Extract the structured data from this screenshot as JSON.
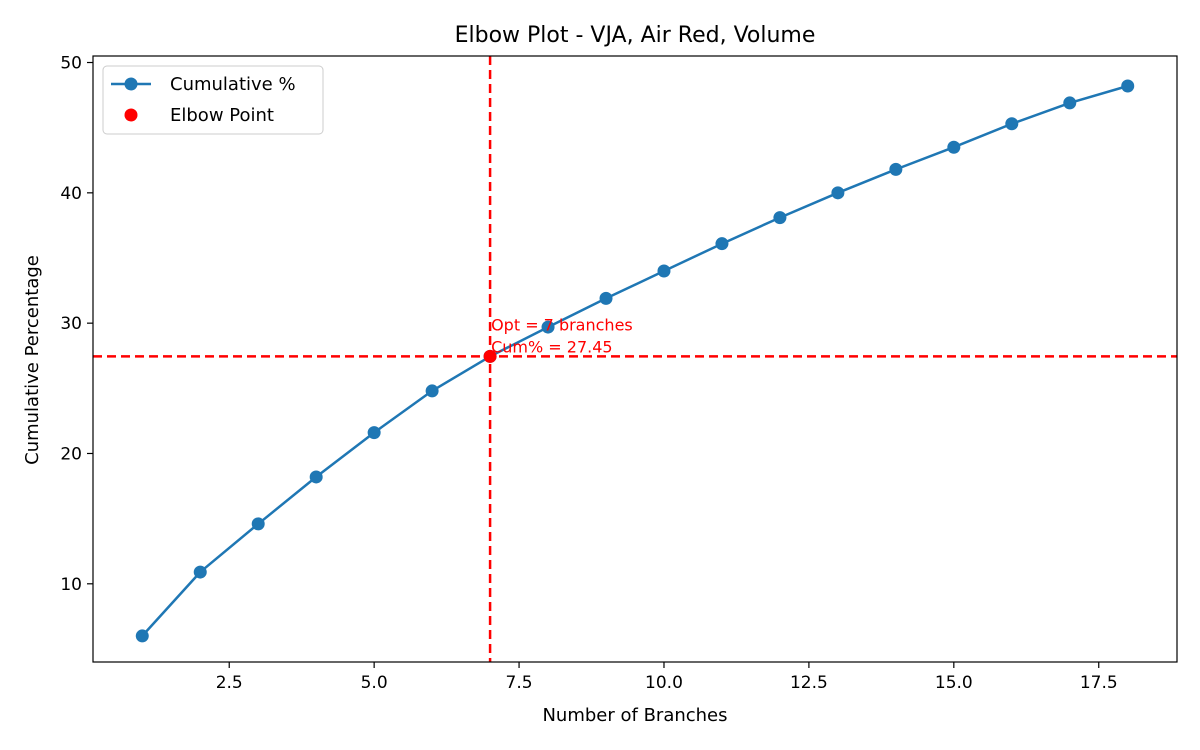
{
  "chart_data": {
    "type": "line",
    "title": "Elbow Plot - VJA, Air Red, Volume",
    "xlabel": "Number of Branches",
    "ylabel": "Cumulative Percentage",
    "xlim": [
      0.15,
      18.85
    ],
    "ylim": [
      4.0,
      50.5
    ],
    "xticks": [
      2.5,
      5.0,
      7.5,
      10.0,
      12.5,
      15.0,
      17.5
    ],
    "xtick_labels": [
      "2.5",
      "5.0",
      "7.5",
      "10.0",
      "12.5",
      "15.0",
      "17.5"
    ],
    "yticks": [
      10,
      20,
      30,
      40,
      50
    ],
    "ytick_labels": [
      "10",
      "20",
      "30",
      "40",
      "50"
    ],
    "grid": false,
    "legend_position": "upper-left",
    "series": [
      {
        "name": "Cumulative %",
        "color": "#1f77b4",
        "marker": "circle",
        "x": [
          1,
          2,
          3,
          4,
          5,
          6,
          7,
          8,
          9,
          10,
          11,
          12,
          13,
          14,
          15,
          16,
          17,
          18
        ],
        "y": [
          6.0,
          10.9,
          14.6,
          18.2,
          21.6,
          24.8,
          27.45,
          29.7,
          31.9,
          34.0,
          36.1,
          38.1,
          40.0,
          41.8,
          43.5,
          45.3,
          46.9,
          48.2
        ]
      }
    ],
    "elbow": {
      "name": "Elbow Point",
      "color": "#ff0000",
      "x": 7,
      "y": 27.45,
      "annotation_line1": "Opt = 7 branches",
      "annotation_line2": "Cum% = 27.45"
    }
  }
}
